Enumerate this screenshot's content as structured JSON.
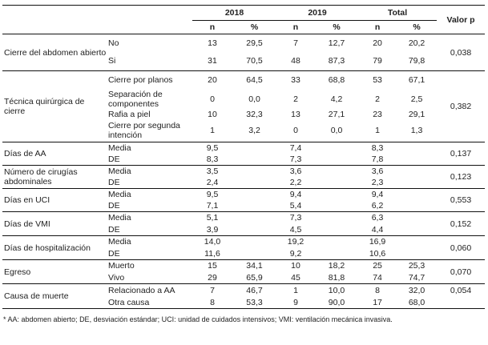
{
  "header": {
    "years": [
      "2018",
      "2019",
      "Total"
    ],
    "n": "n",
    "pct": "%",
    "pvalue": "Valor p"
  },
  "groups": [
    {
      "label": "Cierre del abdomen abierto",
      "p": "0,038",
      "type": "count",
      "rows": [
        {
          "sub": "No",
          "v": [
            "13",
            "29,5",
            "7",
            "12,7",
            "20",
            "20,2"
          ]
        },
        {
          "sub": "Si",
          "v": [
            "31",
            "70,5",
            "48",
            "87,3",
            "79",
            "79,8"
          ]
        }
      ]
    },
    {
      "label": "Técnica quirúrgica de cierre",
      "p": "0,382",
      "type": "count",
      "rows": [
        {
          "sub": "Cierre por planos",
          "v": [
            "20",
            "64,5",
            "33",
            "68,8",
            "53",
            "67,1"
          ]
        },
        {
          "sub": "Separación de componentes",
          "v": [
            "0",
            "0,0",
            "2",
            "4,2",
            "2",
            "2,5"
          ]
        },
        {
          "sub": "Rafia a piel",
          "v": [
            "10",
            "32,3",
            "13",
            "27,1",
            "23",
            "29,1"
          ]
        },
        {
          "sub": "Cierre por segunda intención",
          "v": [
            "1",
            "3,2",
            "0",
            "0,0",
            "1",
            "1,3"
          ]
        }
      ]
    },
    {
      "label": "Días de AA",
      "p": "0,137",
      "type": "stat",
      "rows": [
        {
          "sub": "Media",
          "v": [
            "9,5",
            "7,4",
            "8,3"
          ]
        },
        {
          "sub": "DE",
          "v": [
            "8,3",
            "7,3",
            "7,8"
          ]
        }
      ]
    },
    {
      "label": "Número de cirugías abdominales",
      "p": "0,123",
      "type": "stat",
      "rows": [
        {
          "sub": "Media",
          "v": [
            "3,5",
            "3,6",
            "3,6"
          ]
        },
        {
          "sub": "DE",
          "v": [
            "2,4",
            "2,2",
            "2,3"
          ]
        }
      ]
    },
    {
      "label": "Días en UCI",
      "p": "0,553",
      "type": "stat",
      "rows": [
        {
          "sub": "Media",
          "v": [
            "9,5",
            "9,4",
            "9,4"
          ]
        },
        {
          "sub": "DE",
          "v": [
            "7,1",
            "5,4",
            "6,2"
          ]
        }
      ]
    },
    {
      "label": "Días de VMI",
      "p": "0,152",
      "type": "stat",
      "rows": [
        {
          "sub": "Media",
          "v": [
            "5,1",
            "7,3",
            "6,3"
          ]
        },
        {
          "sub": "DE",
          "v": [
            "3,9",
            "4,5",
            "4,4"
          ]
        }
      ]
    },
    {
      "label": "Días de hospitalización",
      "p": "0,060",
      "type": "stat",
      "rows": [
        {
          "sub": "Media",
          "v": [
            "14,0",
            "19,2",
            "16,9"
          ]
        },
        {
          "sub": "DE",
          "v": [
            "11,6",
            "9,2",
            "10,6"
          ]
        }
      ]
    },
    {
      "label": "Egreso",
      "p": "0,070",
      "type": "count",
      "rows": [
        {
          "sub": "Muerto",
          "v": [
            "15",
            "34,1",
            "10",
            "18,2",
            "25",
            "25,3"
          ]
        },
        {
          "sub": "Vivo",
          "v": [
            "29",
            "65,9",
            "45",
            "81,8",
            "74",
            "74,7"
          ]
        }
      ]
    },
    {
      "label": "Causa de muerte",
      "p": "0,054",
      "ptop": true,
      "type": "count",
      "rows": [
        {
          "sub": "Relacionado a AA",
          "v": [
            "7",
            "46,7",
            "1",
            "10,0",
            "8",
            "32,0"
          ]
        },
        {
          "sub": "Otra causa",
          "v": [
            "8",
            "53,3",
            "9",
            "90,0",
            "17",
            "68,0"
          ]
        }
      ]
    }
  ],
  "footnote": "* AA: abdomen abierto; DE, desviación estándar; UCI: unidad de cuidados intensivos; VMI: ventilación mecánica invasiva."
}
